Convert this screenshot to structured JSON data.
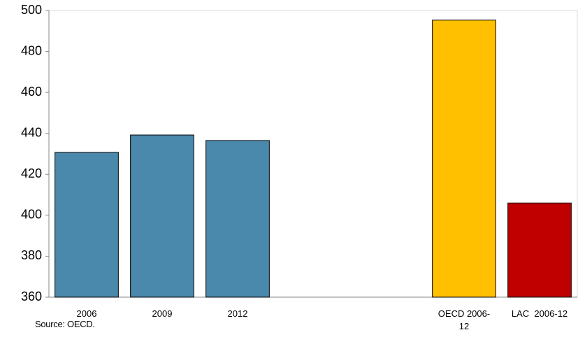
{
  "chart_data": {
    "type": "bar",
    "categories": [
      "2006",
      "2009",
      "2012",
      null,
      null,
      "OECD 2006-12",
      "LAC  2006-12"
    ],
    "values": [
      430.7,
      439.2,
      436.5,
      null,
      null,
      495.3,
      406
    ],
    "colors": [
      "#4a89ab",
      "#4a89ab",
      "#4a89ab",
      null,
      null,
      "#ffc000",
      "#c00000"
    ],
    "ylim": [
      360,
      500
    ],
    "yticks": [
      360,
      380,
      400,
      420,
      440,
      460,
      480,
      500
    ],
    "grid": false,
    "source": "Source: OECD."
  }
}
